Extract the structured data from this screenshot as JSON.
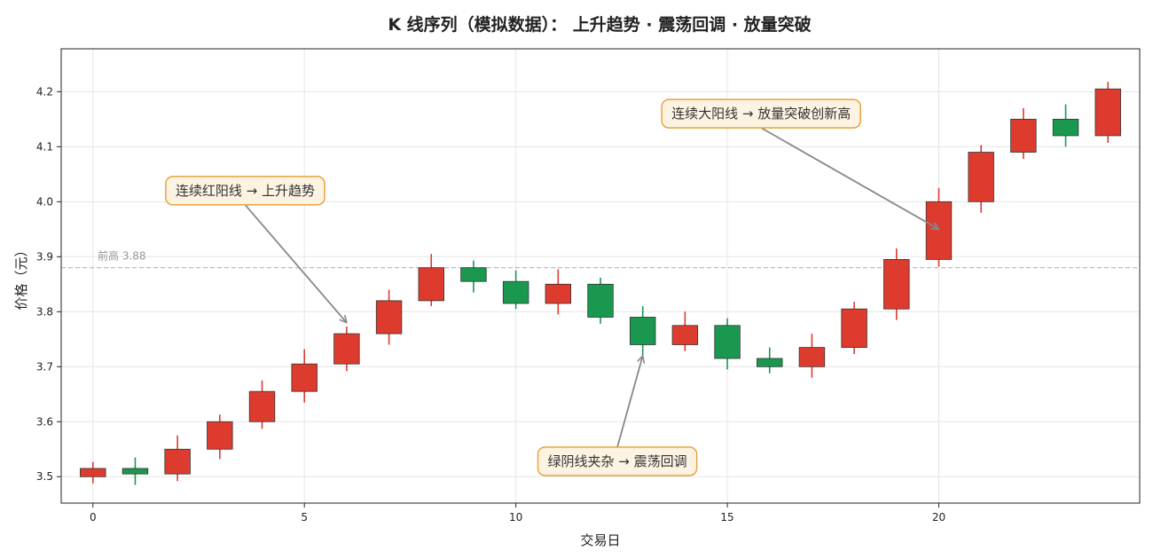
{
  "chart_data": {
    "type": "candlestick",
    "title": "K 线序列（模拟数据）： 上升趋势 · 震荡回调 · 放量突破",
    "xlabel": "交易日",
    "ylabel": "价格（元）",
    "xlim": [
      -0.75,
      24.75
    ],
    "ylim": [
      3.452,
      4.278
    ],
    "xticks": [
      0,
      5,
      10,
      15,
      20
    ],
    "yticks": [
      3.5,
      3.6,
      3.7,
      3.8,
      3.9,
      4.0,
      4.1,
      4.2
    ],
    "grid": true,
    "colors": {
      "up": "#de3b2f",
      "down": "#1a9850",
      "edge": "#333333",
      "ref": "#aaaaaa",
      "arrow": "#888888",
      "ann_border": "#e8a33c",
      "ann_fill": "#fdf3e2"
    },
    "reference_line": {
      "y": 3.88,
      "label": "前高 3.88"
    },
    "candles": [
      {
        "x": 0,
        "open": 3.5,
        "close": 3.515,
        "high": 3.527,
        "low": 3.488
      },
      {
        "x": 1,
        "open": 3.515,
        "close": 3.505,
        "high": 3.535,
        "low": 3.485
      },
      {
        "x": 2,
        "open": 3.505,
        "close": 3.55,
        "high": 3.575,
        "low": 3.492
      },
      {
        "x": 3,
        "open": 3.55,
        "close": 3.6,
        "high": 3.613,
        "low": 3.532
      },
      {
        "x": 4,
        "open": 3.6,
        "close": 3.655,
        "high": 3.675,
        "low": 3.587
      },
      {
        "x": 5,
        "open": 3.655,
        "close": 3.705,
        "high": 3.732,
        "low": 3.635
      },
      {
        "x": 6,
        "open": 3.705,
        "close": 3.76,
        "high": 3.773,
        "low": 3.692
      },
      {
        "x": 7,
        "open": 3.76,
        "close": 3.82,
        "high": 3.84,
        "low": 3.74
      },
      {
        "x": 8,
        "open": 3.82,
        "close": 3.88,
        "high": 3.905,
        "low": 3.81
      },
      {
        "x": 9,
        "open": 3.88,
        "close": 3.855,
        "high": 3.893,
        "low": 3.835
      },
      {
        "x": 10,
        "open": 3.855,
        "close": 3.815,
        "high": 3.875,
        "low": 3.805
      },
      {
        "x": 11,
        "open": 3.815,
        "close": 3.85,
        "high": 3.877,
        "low": 3.795
      },
      {
        "x": 12,
        "open": 3.85,
        "close": 3.79,
        "high": 3.862,
        "low": 3.778
      },
      {
        "x": 13,
        "open": 3.79,
        "close": 3.74,
        "high": 3.81,
        "low": 3.72
      },
      {
        "x": 14,
        "open": 3.74,
        "close": 3.775,
        "high": 3.8,
        "low": 3.728
      },
      {
        "x": 15,
        "open": 3.775,
        "close": 3.715,
        "high": 3.788,
        "low": 3.695
      },
      {
        "x": 16,
        "open": 3.715,
        "close": 3.7,
        "high": 3.735,
        "low": 3.688
      },
      {
        "x": 17,
        "open": 3.7,
        "close": 3.735,
        "high": 3.76,
        "low": 3.68
      },
      {
        "x": 18,
        "open": 3.735,
        "close": 3.805,
        "high": 3.818,
        "low": 3.723
      },
      {
        "x": 19,
        "open": 3.805,
        "close": 3.895,
        "high": 3.915,
        "low": 3.785
      },
      {
        "x": 20,
        "open": 3.895,
        "close": 4.0,
        "high": 4.025,
        "low": 3.882
      },
      {
        "x": 21,
        "open": 4.0,
        "close": 4.09,
        "high": 4.103,
        "low": 3.98
      },
      {
        "x": 22,
        "open": 4.09,
        "close": 4.15,
        "high": 4.17,
        "low": 4.078
      },
      {
        "x": 23,
        "open": 4.15,
        "close": 4.12,
        "high": 4.177,
        "low": 4.1
      },
      {
        "x": 24,
        "open": 4.12,
        "close": 4.205,
        "high": 4.218,
        "low": 4.107
      }
    ],
    "annotations": [
      {
        "text": "连续红阳线 → 上升趋势",
        "text_x": 3.6,
        "text_y": 4.02,
        "arrow_x": 6.0,
        "arrow_y": 3.78
      },
      {
        "text": "绿阴线夹杂 → 震荡回调",
        "text_x": 12.4,
        "text_y": 3.528,
        "arrow_x": 13.0,
        "arrow_y": 3.72
      },
      {
        "text": "连续大阳线 → 放量突破创新高",
        "text_x": 15.8,
        "text_y": 4.16,
        "arrow_x": 20.0,
        "arrow_y": 3.95
      }
    ]
  }
}
